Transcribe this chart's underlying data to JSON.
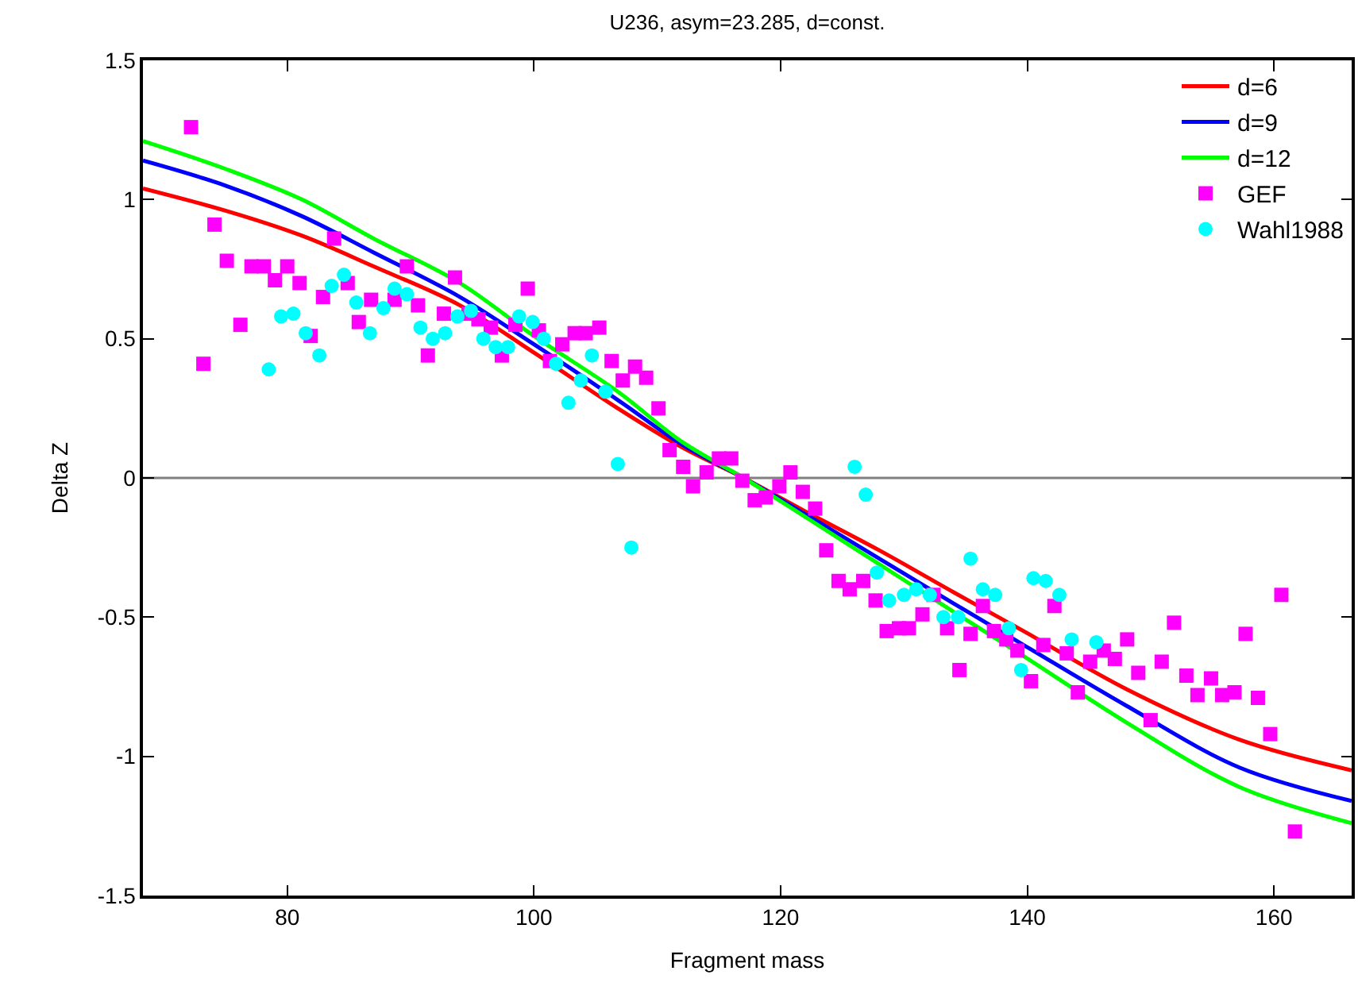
{
  "chart_data": {
    "type": "line",
    "title": "U236, asym=23.285, d=const.",
    "xlabel": "Fragment mass",
    "ylabel": "Delta Z",
    "xlim": [
      68.3,
      166.3
    ],
    "xticks": [
      80,
      100,
      120,
      140,
      160
    ],
    "ylim": [
      -1.5,
      1.5
    ],
    "yticks": [
      -1.5,
      -1,
      -0.5,
      0,
      0.5,
      1,
      1.5
    ],
    "grid": false,
    "legend": "top right",
    "ref_lines": [
      {
        "axis": "y",
        "value": 0,
        "color": "#808080"
      }
    ],
    "series": [
      {
        "name": "d=6",
        "color": "#ff0000",
        "line_style": "solid",
        "x": [
          68.3,
          75,
          81.2,
          87,
          94,
          100,
          106.8,
          112,
          117,
          122,
          128,
          134,
          139.7,
          148.1,
          157.2,
          166.3
        ],
        "values": [
          1.04,
          0.96,
          0.87,
          0.76,
          0.62,
          0.45,
          0.25,
          0.11,
          0,
          -0.12,
          -0.26,
          -0.41,
          -0.55,
          -0.76,
          -0.94,
          -1.05
        ]
      },
      {
        "name": "d=9",
        "color": "#0000ff",
        "line_style": "solid",
        "x": [
          68.3,
          75,
          81.2,
          87,
          94,
          100,
          106.8,
          112,
          117,
          122,
          128,
          134,
          139.7,
          148.1,
          157.2,
          166.3
        ],
        "values": [
          1.14,
          1.05,
          0.94,
          0.81,
          0.65,
          0.48,
          0.28,
          0.12,
          0,
          -0.13,
          -0.29,
          -0.45,
          -0.6,
          -0.82,
          -1.04,
          -1.16
        ]
      },
      {
        "name": "d=12",
        "color": "#00ff00",
        "line_style": "solid",
        "x": [
          68.3,
          75,
          81.2,
          87,
          94,
          100,
          106.8,
          112,
          117,
          122,
          128,
          134,
          139.7,
          148.1,
          157.2,
          166.3
        ],
        "values": [
          1.21,
          1.11,
          1.0,
          0.86,
          0.7,
          0.51,
          0.31,
          0.13,
          0,
          -0.14,
          -0.31,
          -0.48,
          -0.64,
          -0.88,
          -1.11,
          -1.24
        ]
      },
      {
        "type": "scatter",
        "name": "GEF",
        "color": "#ff00ff",
        "marker": "square",
        "x": [
          72.2,
          73.2,
          74.1,
          75.1,
          76.2,
          77.1,
          78.1,
          79.0,
          80.0,
          81.0,
          81.9,
          82.9,
          83.8,
          84.9,
          85.8,
          86.8,
          87.8,
          88.7,
          89.7,
          90.6,
          91.4,
          92.7,
          93.6,
          94.7,
          95.5,
          96.5,
          97.4,
          98.5,
          99.5,
          100.4,
          101.3,
          102.3,
          103.3,
          104.2,
          105.3,
          106.3,
          107.2,
          108.2,
          109.1,
          110.1,
          111.0,
          112.1,
          112.9,
          114.0,
          115.0,
          116.0,
          116.9,
          117.9,
          118.8,
          119.9,
          120.8,
          121.8,
          122.8,
          123.7,
          124.7,
          125.6,
          126.7,
          127.7,
          128.6,
          129.6,
          130.4,
          131.5,
          132.4,
          133.5,
          134.5,
          135.4,
          136.4,
          137.3,
          138.3,
          139.2,
          140.3,
          141.3,
          142.2,
          143.2,
          144.1,
          145.1,
          146.2,
          147.1,
          148.1,
          149.0,
          150.0,
          150.9,
          151.9,
          152.9,
          153.8,
          154.9,
          155.8,
          156.8,
          157.7,
          158.7,
          159.7,
          160.6,
          161.7
        ],
        "values": [
          1.26,
          0.41,
          0.91,
          0.78,
          0.55,
          0.76,
          0.76,
          0.71,
          0.76,
          0.7,
          0.51,
          0.65,
          0.86,
          0.7,
          0.56,
          0.64,
          null,
          0.64,
          0.76,
          0.62,
          0.44,
          0.59,
          0.72,
          0.59,
          0.57,
          0.54,
          0.44,
          0.55,
          0.68,
          0.53,
          0.42,
          0.48,
          0.52,
          0.52,
          0.54,
          0.42,
          0.35,
          0.4,
          0.36,
          0.25,
          0.1,
          0.04,
          -0.03,
          0.02,
          0.07,
          0.07,
          -0.01,
          -0.08,
          -0.07,
          -0.03,
          0.02,
          -0.05,
          -0.11,
          -0.26,
          -0.37,
          -0.4,
          -0.37,
          -0.44,
          -0.55,
          -0.54,
          -0.54,
          -0.49,
          -0.42,
          -0.54,
          -0.69,
          -0.56,
          -0.46,
          -0.55,
          -0.58,
          -0.62,
          -0.73,
          -0.6,
          -0.46,
          -0.63,
          -0.77,
          -0.66,
          -0.62,
          -0.65,
          -0.58,
          -0.7,
          -0.87,
          -0.66,
          -0.52,
          -0.71,
          -0.78,
          -0.72,
          -0.78,
          -0.77,
          -0.56,
          -0.79,
          -0.92,
          -0.42,
          -1.27
        ]
      },
      {
        "type": "scatter",
        "name": "Wahl1988",
        "color": "#00ffff",
        "marker": "circle",
        "x": [
          78.5,
          79.5,
          80.5,
          81.5,
          82.6,
          83.6,
          84.6,
          85.6,
          86.7,
          87.8,
          88.7,
          89.7,
          90.8,
          91.8,
          92.8,
          93.8,
          94.9,
          95.9,
          96.9,
          97.9,
          98.8,
          99.9,
          100.8,
          101.8,
          102.8,
          103.8,
          104.7,
          105.8,
          106.8,
          107.9,
          126.0,
          126.9,
          127.8,
          128.8,
          130.0,
          131.0,
          132.1,
          133.2,
          134.4,
          135.4,
          136.4,
          137.4,
          138.5,
          139.5,
          140.5,
          141.5,
          142.6,
          143.6,
          145.6
        ],
        "values": [
          0.39,
          0.58,
          0.59,
          0.52,
          0.44,
          0.69,
          0.73,
          0.63,
          0.52,
          0.61,
          0.68,
          0.66,
          0.54,
          0.5,
          0.52,
          0.58,
          0.6,
          0.5,
          0.47,
          0.47,
          0.58,
          0.56,
          0.5,
          0.41,
          0.27,
          0.35,
          0.44,
          0.31,
          0.05,
          -0.25,
          0.04,
          -0.06,
          -0.34,
          -0.44,
          -0.42,
          -0.4,
          -0.42,
          -0.5,
          -0.5,
          -0.29,
          -0.4,
          -0.42,
          -0.54,
          -0.69,
          -0.36,
          -0.37,
          -0.42,
          -0.58,
          -0.59
        ]
      }
    ]
  }
}
